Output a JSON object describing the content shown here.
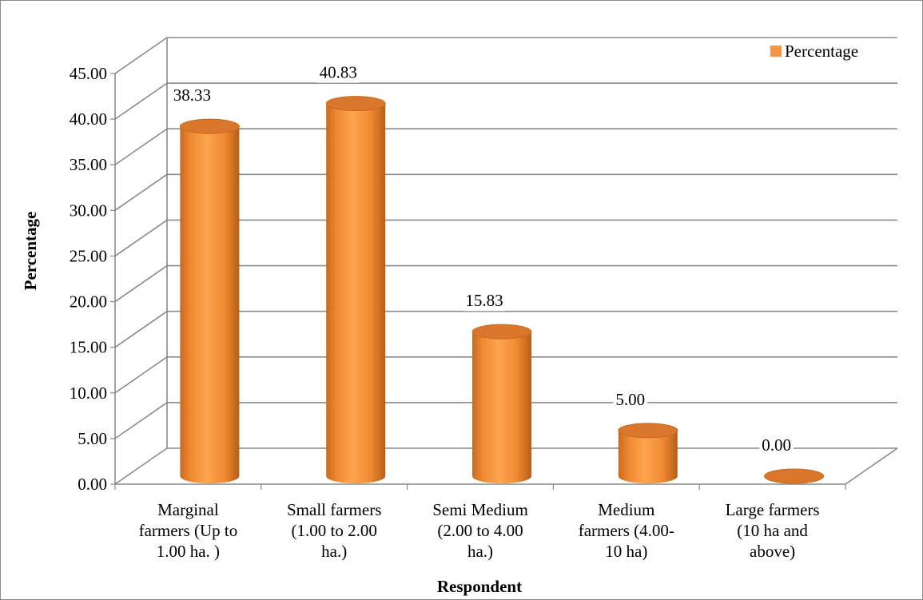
{
  "chart_data": {
    "type": "bar",
    "style": "3d-cylinder",
    "categories": [
      [
        "Marginal",
        "farmers (Up to",
        "1.00 ha. )"
      ],
      [
        "Small farmers",
        "(1.00 to 2.00",
        "ha.)"
      ],
      [
        "Semi Medium",
        "(2.00 to 4.00",
        "ha.)"
      ],
      [
        "Medium",
        "farmers  (4.00-",
        "10 ha)"
      ],
      [
        "Large farmers",
        "(10 ha and",
        "above)"
      ]
    ],
    "series": [
      {
        "name": "Percentage",
        "values": [
          38.33,
          40.83,
          15.83,
          5.0,
          0.0
        ],
        "labels": [
          "38.33",
          "40.83",
          "15.83",
          "5.00",
          "0.00"
        ],
        "color": "#F79646"
      }
    ],
    "xlabel": "Respondent",
    "ylabel": "Percentage",
    "ylim": [
      0,
      45
    ],
    "yticks": [
      "0.00",
      "5.00",
      "10.00",
      "15.00",
      "20.00",
      "25.00",
      "30.00",
      "35.00",
      "40.00",
      "45.00"
    ],
    "grid": true,
    "legend": "top-right"
  }
}
